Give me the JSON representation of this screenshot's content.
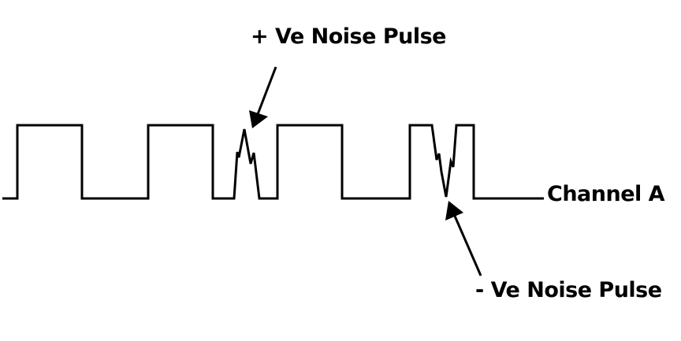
{
  "labels": {
    "positive_noise": "+  Ve Noise Pulse",
    "negative_noise": "-  Ve Noise Pulse",
    "channel": "Channel A"
  },
  "colors": {
    "line": "#000000",
    "background": "#ffffff"
  }
}
